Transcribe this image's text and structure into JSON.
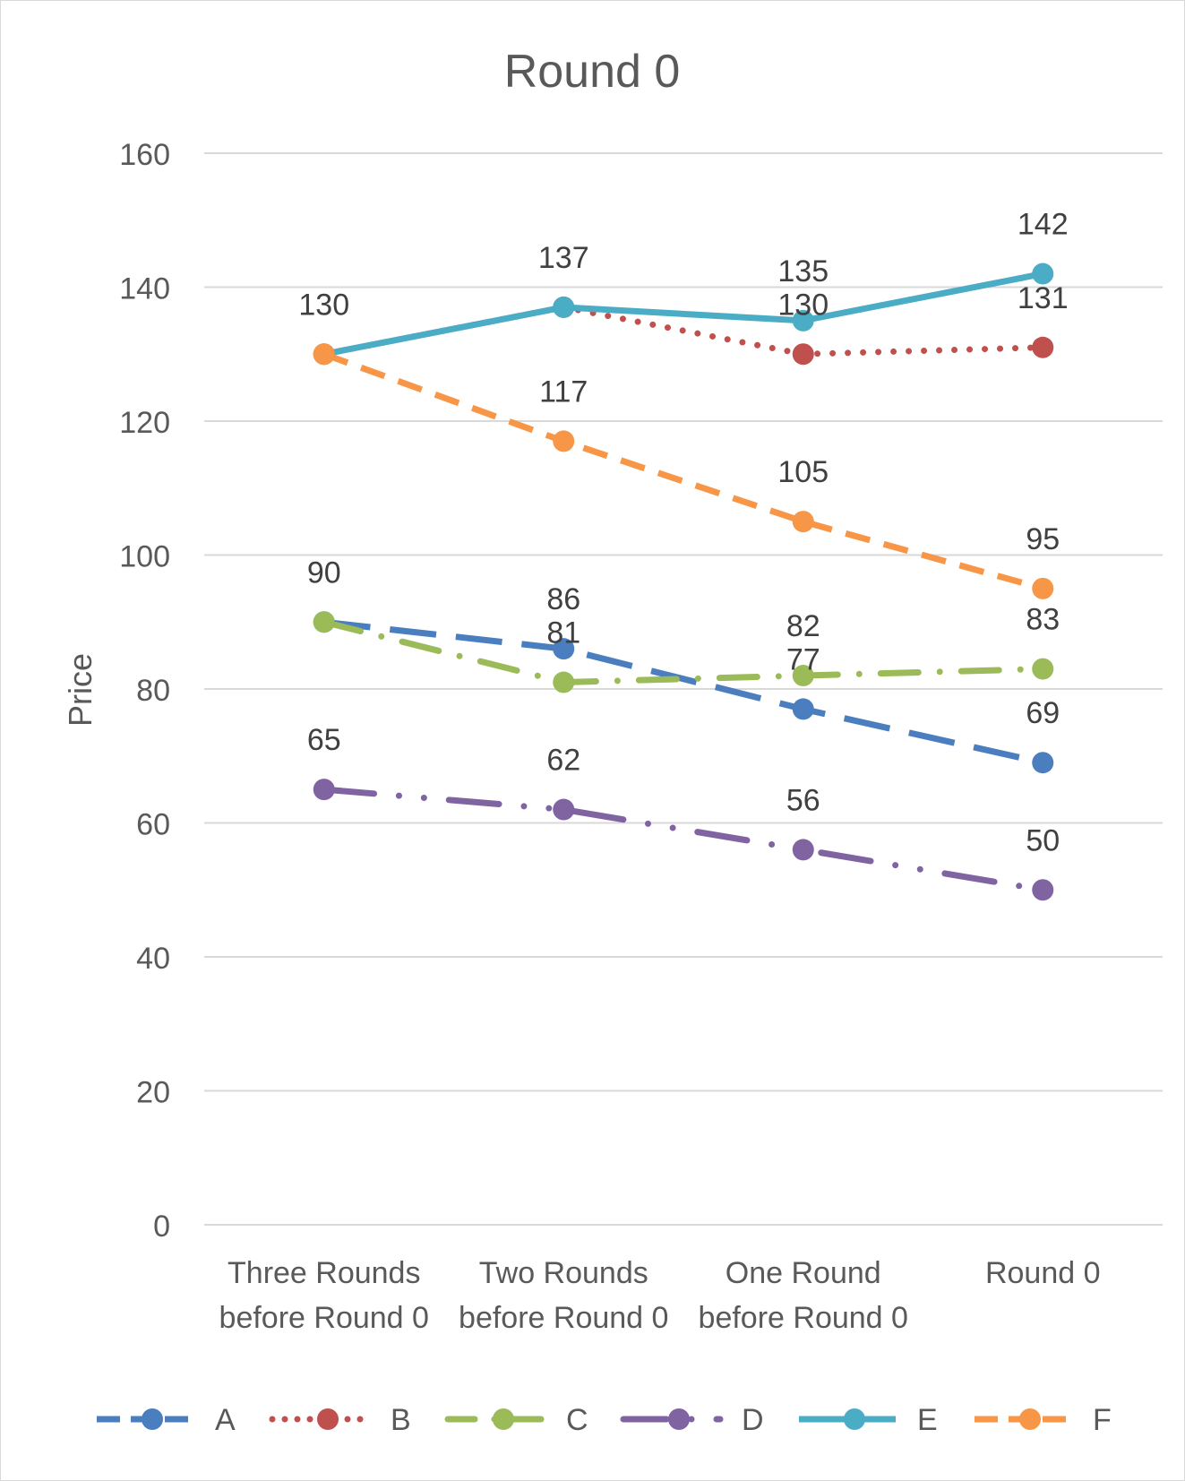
{
  "chart_data": {
    "type": "line",
    "title": "Round 0",
    "xlabel": "",
    "ylabel": "Price",
    "ylim": [
      0,
      160
    ],
    "yticks": [
      "0",
      "20",
      "40",
      "60",
      "80",
      "100",
      "120",
      "140",
      "160"
    ],
    "categories": [
      [
        "Three Rounds",
        "before Round 0"
      ],
      [
        "Two Rounds",
        "before Round 0"
      ],
      [
        "One Round",
        "before Round 0"
      ],
      [
        "Round 0"
      ]
    ],
    "grid": true,
    "legend_position": "bottom",
    "series": [
      {
        "name": "A",
        "values": [
          90,
          86,
          77,
          69
        ],
        "labels": [
          "",
          "86",
          "77",
          "69"
        ],
        "color": "#4a7ebf",
        "dash": "long-dash"
      },
      {
        "name": "B",
        "values": [
          130,
          137,
          130,
          131
        ],
        "labels": [
          "",
          "",
          "130",
          "131"
        ],
        "color": "#c0504d",
        "dash": "dotted"
      },
      {
        "name": "C",
        "values": [
          90,
          81,
          82,
          83
        ],
        "labels": [
          "90",
          "81",
          "82",
          "83"
        ],
        "color": "#9bbb59",
        "dash": "dash-dot"
      },
      {
        "name": "D",
        "values": [
          65,
          62,
          56,
          50
        ],
        "labels": [
          "65",
          "62",
          "56",
          "50"
        ],
        "color": "#8064a2",
        "dash": "long-dash-dot-dot"
      },
      {
        "name": "E",
        "values": [
          130,
          137,
          135,
          142
        ],
        "labels": [
          "",
          "137",
          "135",
          "142"
        ],
        "color": "#4bacc6",
        "dash": "solid"
      },
      {
        "name": "F",
        "values": [
          130,
          117,
          105,
          95
        ],
        "labels": [
          "130",
          "117",
          "105",
          "95"
        ],
        "color": "#f79646",
        "dash": "dashed"
      }
    ]
  }
}
